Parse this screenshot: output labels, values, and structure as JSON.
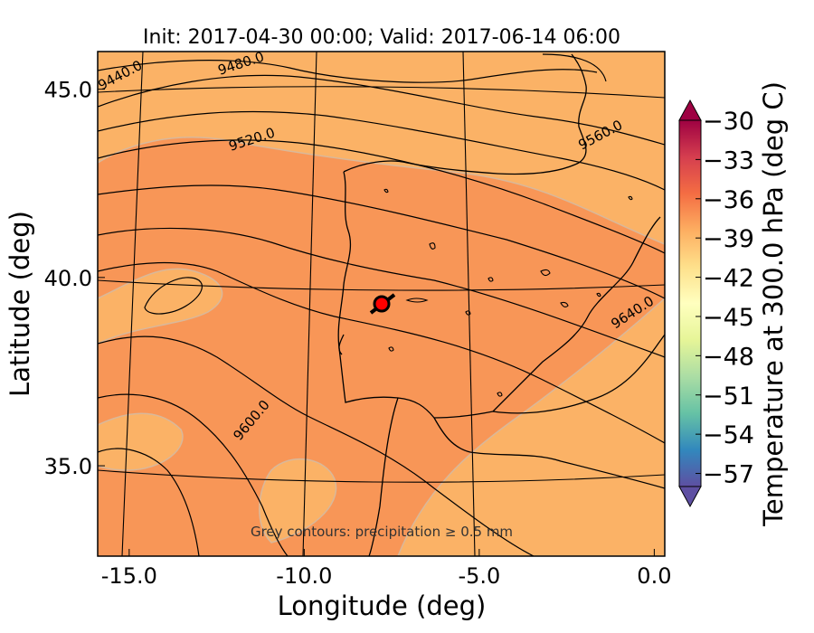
{
  "title": "Init: 2017-04-30 00:00; Valid: 2017-06-14 06:00",
  "axes": {
    "xlabel": "Longitude (deg)",
    "ylabel": "Latitude (deg)",
    "xticks": [
      {
        "value": -15,
        "label": "-15.0"
      },
      {
        "value": -10,
        "label": "-10.0"
      },
      {
        "value": -5,
        "label": "-5.0"
      },
      {
        "value": 0,
        "label": "0.0"
      }
    ],
    "yticks": [
      {
        "value": 45,
        "label": "45.0"
      },
      {
        "value": 40,
        "label": "40.0"
      },
      {
        "value": 35,
        "label": "35.0"
      }
    ],
    "xlim": [
      -15.9,
      0.3
    ],
    "ylim": [
      32.6,
      46.0
    ]
  },
  "colorbar": {
    "label": "Temperature at 300.0 hPa (deg C)",
    "ticks": [
      "−30",
      "−33",
      "−36",
      "−39",
      "−42",
      "−45",
      "−48",
      "−51",
      "−54",
      "−57"
    ],
    "range": [
      -58,
      -30
    ],
    "extend": "both",
    "colors": {
      "top_extend": "#9e0142",
      "bottom_extend": "#5e4fa2",
      "gradient": [
        "#9e0142",
        "#d53e4f",
        "#f46d43",
        "#fdae61",
        "#fee08b",
        "#ffffbf",
        "#e6f598",
        "#abdda4",
        "#66c2a5",
        "#3288bd",
        "#5e4fa2"
      ]
    }
  },
  "contour_labels": [
    "9440.0",
    "9480.0",
    "9520.0",
    "9560.0",
    "9600.0",
    "9640.0"
  ],
  "annotation": "Grey contours: precipitation ≥ 0.5 mm",
  "marker": {
    "lon": -7.6,
    "lat": 39.3,
    "color": "#ff0000"
  },
  "fill_colors": {
    "warm": "#f89657",
    "mid": "#fbb266",
    "precip_contour": "#c8c8c8"
  }
}
